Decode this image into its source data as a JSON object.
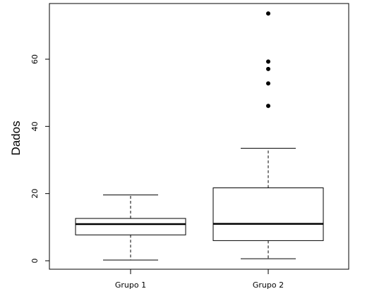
{
  "chart_data": {
    "type": "box",
    "title": "",
    "xlabel": "",
    "ylabel": "Dados",
    "ylim": [
      -2.5,
      76
    ],
    "yticks": [
      0,
      20,
      40,
      60
    ],
    "grid": false,
    "categories": [
      "Grupo 1",
      "Grupo 2"
    ],
    "boxes": [
      {
        "category": "Grupo 1",
        "whisker_low": 0.2,
        "q1": 7.7,
        "median": 10.9,
        "q3": 12.6,
        "whisker_high": 19.6,
        "outliers": []
      },
      {
        "category": "Grupo 2",
        "whisker_low": 0.6,
        "q1": 6.0,
        "median": 11.0,
        "q3": 21.7,
        "whisker_high": 33.5,
        "outliers": [
          46.1,
          52.8,
          57.1,
          59.3,
          73.6
        ]
      }
    ]
  }
}
